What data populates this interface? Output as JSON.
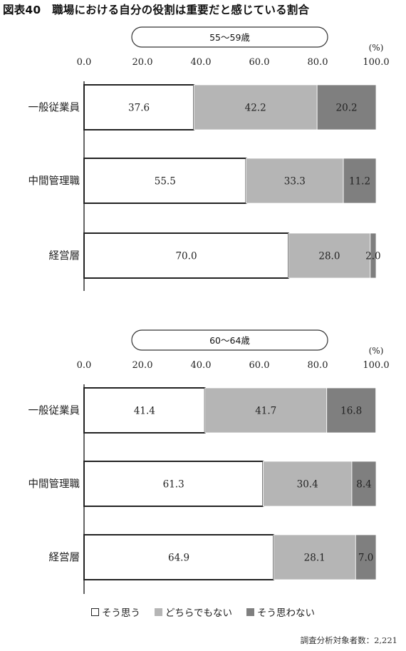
{
  "title": "図表40　職場における自分の役割は重要だと感じている割合",
  "chart_data": [
    {
      "type": "bar",
      "orientation": "horizontal-stacked",
      "group_label": "55〜59歳",
      "unit_label": "(%)",
      "xlim": [
        0,
        100
      ],
      "ticks": [
        "0.0",
        "20.0",
        "40.0",
        "60.0",
        "80.0",
        "100.0"
      ],
      "categories": [
        "一般従業員",
        "中間管理職",
        "経営層"
      ],
      "series": [
        {
          "name": "そう思う",
          "values": [
            37.6,
            55.5,
            70.0
          ],
          "labels": [
            "37.6",
            "55.5",
            "70.0"
          ]
        },
        {
          "name": "どちらでもない",
          "values": [
            42.2,
            33.3,
            28.0
          ],
          "labels": [
            "42.2",
            "33.3",
            "28.0"
          ]
        },
        {
          "name": "そう思わない",
          "values": [
            20.2,
            11.2,
            2.0
          ],
          "labels": [
            "20.2",
            "11.2",
            "2.0"
          ]
        }
      ]
    },
    {
      "type": "bar",
      "orientation": "horizontal-stacked",
      "group_label": "60〜64歳",
      "unit_label": "(%)",
      "xlim": [
        0,
        100
      ],
      "ticks": [
        "0.0",
        "20.0",
        "40.0",
        "60.0",
        "80.0",
        "100.0"
      ],
      "categories": [
        "一般従業員",
        "中間管理職",
        "経営層"
      ],
      "series": [
        {
          "name": "そう思う",
          "values": [
            41.4,
            61.3,
            64.9
          ],
          "labels": [
            "41.4",
            "61.3",
            "64.9"
          ]
        },
        {
          "name": "どちらでもない",
          "values": [
            41.7,
            30.4,
            28.1
          ],
          "labels": [
            "41.7",
            "30.4",
            "28.1"
          ]
        },
        {
          "name": "そう思わない",
          "values": [
            16.8,
            8.4,
            7.0
          ],
          "labels": [
            "16.8",
            "8.4",
            "7.0"
          ]
        }
      ]
    }
  ],
  "legend": [
    {
      "label": "そう思う",
      "color": "#ffffff",
      "border": "#222222"
    },
    {
      "label": "どちらでもない",
      "color": "#b5b5b5",
      "border": "#b5b5b5"
    },
    {
      "label": "そう思わない",
      "color": "#7f7f7f",
      "border": "#7f7f7f"
    }
  ],
  "note": "調査分析対象者数：2,221",
  "colors": {
    "series1": "#ffffff",
    "series2": "#b5b5b5",
    "series3": "#7f7f7f",
    "outline": "#222222"
  }
}
